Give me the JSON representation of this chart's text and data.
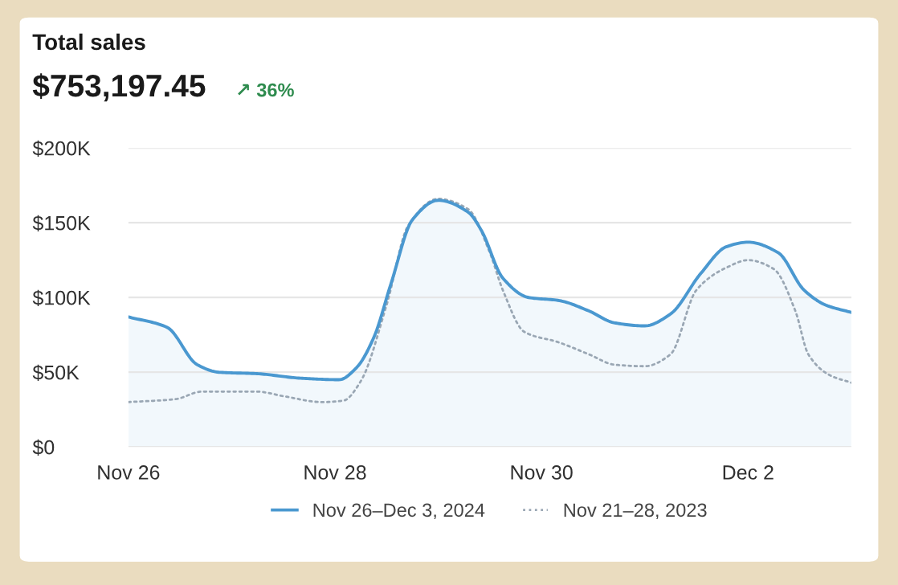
{
  "chart_data": {
    "type": "line",
    "title": "Total sales",
    "subtitle": "$753,197.45",
    "annotations": [
      "↗ 36%"
    ],
    "xlim": [
      "2024-11-26",
      "2024-12-03"
    ],
    "xticks": [
      {
        "value": "2024-11-26",
        "label": "Nov 26"
      },
      {
        "value": "2024-11-28",
        "label": "Nov 28"
      },
      {
        "value": "2024-11-30",
        "label": "Nov 30"
      },
      {
        "value": "2024-12-02",
        "label": "Dec 2"
      }
    ],
    "ylim": [
      0,
      200000
    ],
    "yticks": [
      {
        "value": 0,
        "label": "$0"
      },
      {
        "value": 50000,
        "label": "$50K"
      },
      {
        "value": 100000,
        "label": "$100K"
      },
      {
        "value": 150000,
        "label": "$150K"
      },
      {
        "value": 200000,
        "label": "$200K"
      }
    ],
    "grid": "y",
    "legend": "bottom",
    "series": [
      {
        "name": "Nov 26–Dec 3, 2024",
        "type": "area",
        "color": "#4a98d0",
        "line_style": "solid",
        "x": [
          "2024-11-26T00:00",
          "2024-11-26T09:00",
          "2024-11-26T16:00",
          "2024-11-26T21:00",
          "2024-11-27T06:00",
          "2024-11-27T16:00",
          "2024-11-28T01:00",
          "2024-11-28T05:00",
          "2024-11-28T09:00",
          "2024-11-28T13:00",
          "2024-11-28T18:00",
          "2024-11-29T00:00",
          "2024-11-29T07:00",
          "2024-11-29T10:00",
          "2024-11-29T15:00",
          "2024-11-29T21:00",
          "2024-11-30T04:00",
          "2024-11-30T11:00",
          "2024-11-30T17:00",
          "2024-12-01T00:00",
          "2024-12-01T06:00",
          "2024-12-01T13:00",
          "2024-12-01T19:00",
          "2024-12-02T00:00",
          "2024-12-02T07:00",
          "2024-12-02T13:00",
          "2024-12-02T18:00",
          "2024-12-03T00:00"
        ],
        "values": [
          87000,
          80000,
          55000,
          50000,
          49000,
          46000,
          45000,
          53000,
          73000,
          109000,
          152000,
          165000,
          157000,
          145000,
          113000,
          100000,
          98000,
          91000,
          83000,
          81000,
          89000,
          116000,
          134000,
          137000,
          130000,
          105000,
          95000,
          90000
        ]
      },
      {
        "name": "Nov 21–28, 2023",
        "type": "line",
        "color": "#9aa7b4",
        "line_style": "dotted",
        "x": [
          "2024-11-26T00:00",
          "2024-11-26T11:00",
          "2024-11-26T17:00",
          "2024-11-27T06:00",
          "2024-11-27T12:00",
          "2024-11-27T21:00",
          "2024-11-28T02:00",
          "2024-11-28T06:00",
          "2024-11-28T12:00",
          "2024-11-28T17:00",
          "2024-11-29T00:00",
          "2024-11-29T07:00",
          "2024-11-29T12:00",
          "2024-11-29T15:00",
          "2024-11-29T20:00",
          "2024-11-30T04:00",
          "2024-11-30T11:00",
          "2024-11-30T17:00",
          "2024-12-01T00:00",
          "2024-12-01T06:00",
          "2024-12-01T12:00",
          "2024-12-01T19:00",
          "2024-12-02T00:00",
          "2024-12-02T06:00",
          "2024-12-02T11:00",
          "2024-12-02T14:00",
          "2024-12-02T19:00",
          "2024-12-03T00:00"
        ],
        "values": [
          30000,
          32000,
          37000,
          37000,
          34000,
          30000,
          31000,
          44000,
          95000,
          148000,
          166000,
          159000,
          130000,
          105000,
          77000,
          70000,
          62000,
          55000,
          54000,
          62000,
          105000,
          120000,
          125000,
          119000,
          91000,
          62000,
          48000,
          43000
        ]
      }
    ]
  }
}
